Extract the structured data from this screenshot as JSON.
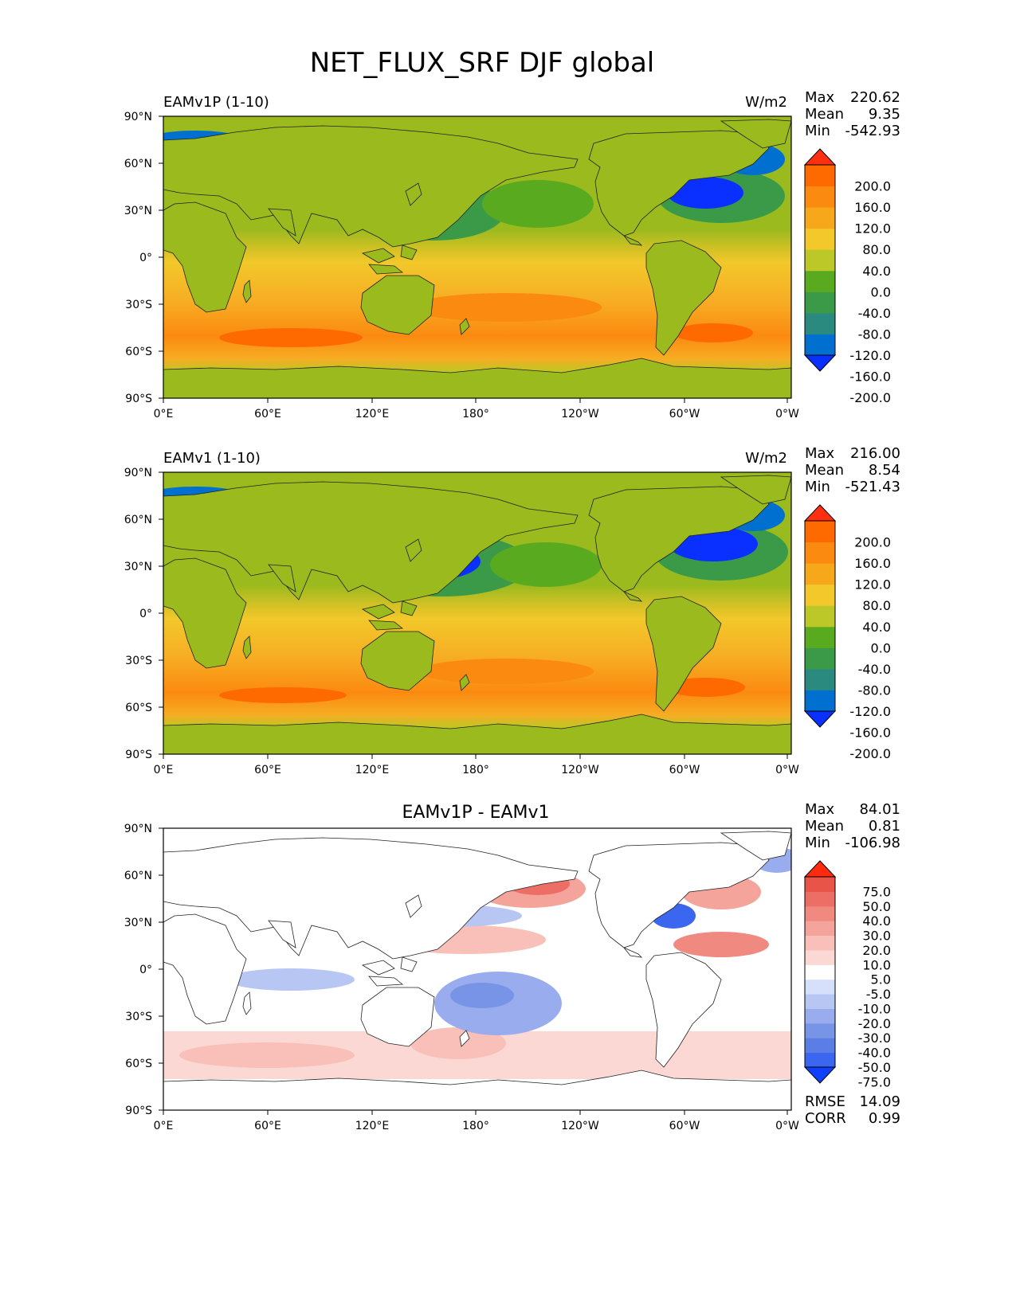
{
  "figure": {
    "title": "NET_FLUX_SRF DJF global"
  },
  "panels": [
    {
      "left_label": "EAMv1P (1-10)",
      "center_title": "",
      "units": "W/m2",
      "stats": [
        {
          "label": "Max",
          "value": "220.62"
        },
        {
          "label": "Mean",
          "value": "9.35"
        },
        {
          "label": "Min",
          "value": "-542.93"
        }
      ],
      "extra_stats": [],
      "colorbar": {
        "colors": [
          "#0a30ff",
          "#0070d0",
          "#2a8a80",
          "#3a9a48",
          "#5aaa20",
          "#bcc828",
          "#f2c82a",
          "#f7a81a",
          "#fb8a10",
          "#ff6a00",
          "#ff3010"
        ],
        "labels": [
          "200.0",
          "160.0",
          "120.0",
          "80.0",
          "40.0",
          "0.0",
          "-40.0",
          "-80.0",
          "-120.0",
          "-160.0",
          "-200.0"
        ]
      }
    },
    {
      "left_label": "EAMv1 (1-10)",
      "center_title": "",
      "units": "W/m2",
      "stats": [
        {
          "label": "Max",
          "value": "216.00"
        },
        {
          "label": "Mean",
          "value": "8.54"
        },
        {
          "label": "Min",
          "value": "-521.43"
        }
      ],
      "extra_stats": [],
      "colorbar": {
        "colors": [
          "#0a30ff",
          "#0070d0",
          "#2a8a80",
          "#3a9a48",
          "#5aaa20",
          "#bcc828",
          "#f2c82a",
          "#f7a81a",
          "#fb8a10",
          "#ff6a00",
          "#ff3010"
        ],
        "labels": [
          "200.0",
          "160.0",
          "120.0",
          "80.0",
          "40.0",
          "0.0",
          "-40.0",
          "-80.0",
          "-120.0",
          "-160.0",
          "-200.0"
        ]
      }
    },
    {
      "left_label": "",
      "center_title": "EAMv1P - EAMv1",
      "units": "",
      "stats": [
        {
          "label": "Max",
          "value": "84.01"
        },
        {
          "label": "Mean",
          "value": "0.81"
        },
        {
          "label": "Min",
          "value": "-106.98"
        }
      ],
      "extra_stats": [
        {
          "label": "RMSE",
          "value": "14.09"
        },
        {
          "label": "CORR",
          "value": "0.99"
        }
      ],
      "colorbar": {
        "colors": [
          "#1040ff",
          "#3a66f0",
          "#5a7ee6",
          "#7894e6",
          "#98acee",
          "#b8c6f4",
          "#d6e0fa",
          "#ffffff",
          "#fcd8d4",
          "#f8c0b8",
          "#f4a49a",
          "#f08a80",
          "#ec6e64",
          "#e85448",
          "#ff2a10"
        ],
        "labels": [
          "75.0",
          "50.0",
          "40.0",
          "30.0",
          "20.0",
          "10.0",
          "5.0",
          "-5.0",
          "-10.0",
          "-20.0",
          "-30.0",
          "-40.0",
          "-50.0",
          "-75.0"
        ]
      }
    }
  ],
  "axes": {
    "yticks": [
      "90°N",
      "60°N",
      "30°N",
      "0°",
      "30°S",
      "60°S",
      "90°S"
    ],
    "xticks": [
      "0°E",
      "60°E",
      "120°E",
      "180°",
      "120°W",
      "60°W",
      "0°W"
    ]
  },
  "chart_data": [
    {
      "type": "heatmap",
      "title": "EAMv1P (1-10)",
      "variable": "NET_FLUX_SRF",
      "season": "DJF",
      "units": "W/m2",
      "x_ticks": [
        "0°E",
        "60°E",
        "120°E",
        "180°",
        "120°W",
        "60°W",
        "0°W"
      ],
      "y_ticks": [
        "90°N",
        "60°N",
        "30°N",
        "0°",
        "30°S",
        "60°S",
        "90°S"
      ],
      "xlim": [
        0,
        360
      ],
      "ylim": [
        -90,
        90
      ],
      "max": 220.62,
      "mean": 9.35,
      "min": -542.93,
      "colorbar_levels": [
        -200,
        -160,
        -120,
        -80,
        -40,
        0,
        40,
        80,
        120,
        160,
        200
      ]
    },
    {
      "type": "heatmap",
      "title": "EAMv1 (1-10)",
      "variable": "NET_FLUX_SRF",
      "season": "DJF",
      "units": "W/m2",
      "x_ticks": [
        "0°E",
        "60°E",
        "120°E",
        "180°",
        "120°W",
        "60°W",
        "0°W"
      ],
      "y_ticks": [
        "90°N",
        "60°N",
        "30°N",
        "0°",
        "30°S",
        "60°S",
        "90°S"
      ],
      "xlim": [
        0,
        360
      ],
      "ylim": [
        -90,
        90
      ],
      "max": 216.0,
      "mean": 8.54,
      "min": -521.43,
      "colorbar_levels": [
        -200,
        -160,
        -120,
        -80,
        -40,
        0,
        40,
        80,
        120,
        160,
        200
      ]
    },
    {
      "type": "heatmap",
      "title": "EAMv1P - EAMv1",
      "variable": "NET_FLUX_SRF",
      "season": "DJF",
      "x_ticks": [
        "0°E",
        "60°E",
        "120°E",
        "180°",
        "120°W",
        "60°W",
        "0°W"
      ],
      "y_ticks": [
        "90°N",
        "60°N",
        "30°N",
        "0°",
        "30°S",
        "60°S",
        "90°S"
      ],
      "xlim": [
        0,
        360
      ],
      "ylim": [
        -90,
        90
      ],
      "max": 84.01,
      "mean": 0.81,
      "min": -106.98,
      "rmse": 14.09,
      "corr": 0.99,
      "colorbar_levels": [
        -75,
        -50,
        -40,
        -30,
        -20,
        -10,
        -5,
        5,
        10,
        20,
        30,
        40,
        50,
        75
      ]
    }
  ]
}
